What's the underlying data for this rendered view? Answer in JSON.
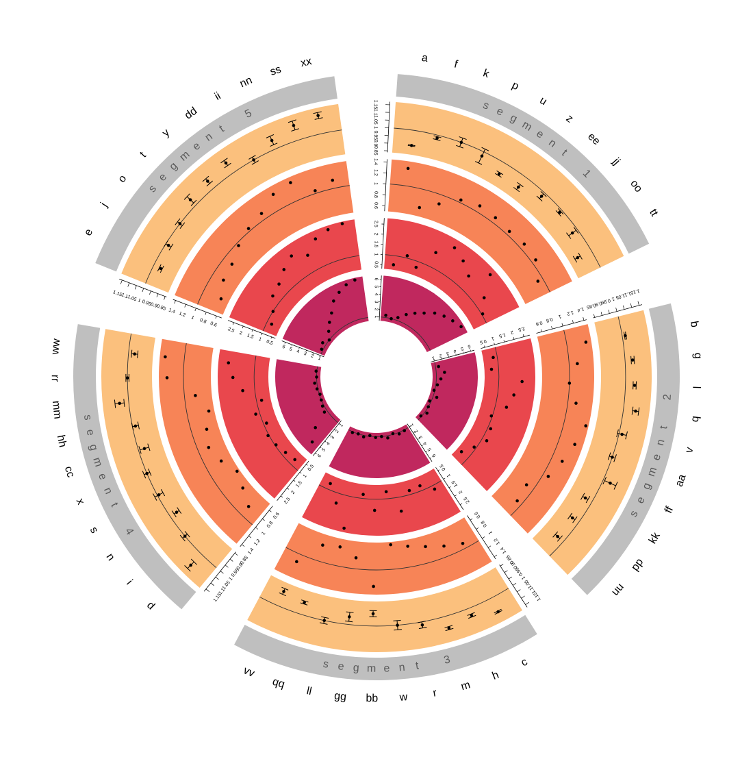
{
  "chart_data": {
    "type": "circos-scatter",
    "title": "",
    "colors": {
      "label_band": "#bfbfbf",
      "label_text": "#5a5a5a",
      "ring_inner": "#c0285e",
      "ring_2": "#e9474d",
      "ring_3": "#f78457",
      "ring_outer": "#fbc07d",
      "point": "#000000",
      "refline": "#333333"
    },
    "segments": [
      {
        "name": "segment 1",
        "labels": [
          "a",
          "f",
          "k",
          "p",
          "u",
          "z",
          "ee",
          "jj",
          "oo",
          "tt"
        ],
        "tracks": [
          {
            "ticks": [
              "1",
              "2",
              "3",
              "4",
              "5",
              "6"
            ],
            "ylim": [
              0.5,
              6.5
            ],
            "ref": 1,
            "errorbars": false,
            "values": [
              1.3,
              1.0,
              1.4,
              2.2,
              2.9,
              3.6,
              4.5,
              5.1,
              5.6,
              6.1
            ],
            "errors": []
          },
          {
            "ticks": [
              "0.5",
              "1",
              "1.5",
              "2",
              "2.5"
            ],
            "ylim": [
              0.3,
              2.8
            ],
            "ref": 1,
            "errorbars": false,
            "values": [
              0.55,
              1.12,
              0.7,
              1.75,
              2.4,
              2.1,
              1.7,
              2.5,
              1.55,
              1.05
            ],
            "errors": []
          },
          {
            "ticks": [
              "0.6",
              "0.8",
              "1",
              "1.2",
              "1.4"
            ],
            "ylim": [
              0.5,
              1.45
            ],
            "ref": 1,
            "errorbars": false,
            "values": [
              1.32,
              0.66,
              0.83,
              1.05,
              1.12,
              1.1,
              1.07,
              1.1,
              1.08,
              0.9
            ],
            "errors": []
          },
          {
            "ticks": [
              "0.85",
              "0.9",
              "0.95",
              "1",
              "1.05",
              "1.1",
              "1.15"
            ],
            "ylim": [
              0.84,
              1.17
            ],
            "ref": 1,
            "errorbars": true,
            "values": [
              0.9,
              0.98,
              1.0,
              0.97,
              0.92,
              0.92,
              0.97,
              0.98,
              0.96,
              0.9
            ],
            "errors": [
              0.003,
              0.01,
              0.03,
              0.05,
              0.01,
              0.02,
              0.02,
              0.01,
              0.03,
              0.02
            ]
          }
        ]
      },
      {
        "name": "segment 2",
        "labels": [
          "b",
          "g",
          "l",
          "q",
          "v",
          "aa",
          "ff",
          "kk",
          "pp",
          "uu"
        ],
        "tracks": [
          {
            "ticks": [
              "1",
              "2",
              "3",
              "4",
              "5",
              "6"
            ],
            "ylim": [
              0.5,
              6.5
            ],
            "ref": 1,
            "errorbars": false,
            "values": [
              1.4,
              2.1,
              1.6,
              1.2,
              0.9,
              1.5,
              0.8,
              1.0,
              1.3,
              0.9
            ],
            "errors": []
          },
          {
            "ticks": [
              "0.5",
              "1",
              "1.5",
              "2",
              "2.5"
            ],
            "ylim": [
              0.3,
              2.8
            ],
            "ref": 1,
            "errorbars": false,
            "values": [
              0.8,
              0.65,
              2.15,
              1.8,
              1.55,
              0.95,
              1.15,
              1.25,
              0.9,
              0.55
            ],
            "errors": []
          },
          {
            "ticks": [
              "0.6",
              "0.8",
              "1",
              "1.2",
              "1.4"
            ],
            "ylim": [
              0.5,
              1.45
            ],
            "ref": 1,
            "errorbars": false,
            "values": [
              1.35,
              1.15,
              1.0,
              1.15,
              1.4,
              1.3,
              1.2,
              1.1,
              0.85,
              0.9
            ],
            "errors": []
          },
          {
            "ticks": [
              "0.85",
              "0.9",
              "0.95",
              "1",
              "1.05",
              "1.1",
              "1.15"
            ],
            "ylim": [
              0.84,
              1.17
            ],
            "ref": 1,
            "errorbars": true,
            "values": [
              1.02,
              1.05,
              1.06,
              1.08,
              1.02,
              1.0,
              1.05,
              0.95,
              0.95,
              0.95
            ],
            "errors": [
              0.005,
              0.01,
              0.01,
              0.02,
              0.03,
              0.02,
              0.04,
              0.02,
              0.02,
              0.02
            ]
          }
        ]
      },
      {
        "name": "segment 3",
        "labels": [
          "c",
          "h",
          "m",
          "r",
          "w",
          "bb",
          "gg",
          "ll",
          "qq",
          "vv"
        ],
        "tracks": [
          {
            "ticks": [
              "1",
              "2",
              "3",
              "4",
              "5",
              "6"
            ],
            "ylim": [
              0.5,
              6.5
            ],
            "ref": 1,
            "errorbars": false,
            "values": [
              1.1,
              1.2,
              0.9,
              1.3,
              1.0,
              1.1,
              0.9,
              1.2,
              1.0,
              1.1
            ],
            "errors": []
          },
          {
            "ticks": [
              "0.5",
              "1",
              "1.5",
              "2",
              "2.5"
            ],
            "ylim": [
              0.3,
              2.8
            ],
            "ref": 1,
            "errorbars": false,
            "values": [
              1.2,
              0.75,
              0.8,
              1.7,
              0.65,
              1.55,
              0.8,
              2.6,
              1.5,
              0.7
            ],
            "errors": []
          },
          {
            "ticks": [
              "0.6",
              "0.8",
              "1",
              "1.2",
              "1.4"
            ],
            "ylim": [
              0.5,
              1.45
            ],
            "ref": 1,
            "errorbars": false,
            "values": [
              0.9,
              0.8,
              0.7,
              0.62,
              0.55,
              1.3,
              0.8,
              0.65,
              0.7,
              1.15
            ],
            "errors": []
          },
          {
            "ticks": [
              "0.85",
              "0.9",
              "0.95",
              "1",
              "1.05",
              "1.1",
              "1.15"
            ],
            "ylim": [
              0.84,
              1.17
            ],
            "ref": 1,
            "errorbars": true,
            "values": [
              1.1,
              1.05,
              1.08,
              1.02,
              1.0,
              0.92,
              0.95,
              1.0,
              0.92,
              0.9
            ],
            "errors": [
              0.005,
              0.01,
              0.01,
              0.02,
              0.03,
              0.02,
              0.03,
              0.02,
              0.01,
              0.02
            ]
          }
        ]
      },
      {
        "name": "segment 4",
        "labels": [
          "d",
          "i",
          "n",
          "s",
          "x",
          "cc",
          "hh",
          "mm",
          "rr",
          "ww"
        ],
        "tracks": [
          {
            "ticks": [
              "1",
              "2",
              "3",
              "4",
              "5",
              "6"
            ],
            "ylim": [
              0.5,
              6.5
            ],
            "ref": 1,
            "errorbars": false,
            "values": [
              5.2,
              3.6,
              1.4,
              1.2,
              1.0,
              0.9,
              1.1,
              1.3,
              1.0,
              1.1
            ],
            "errors": []
          },
          {
            "ticks": [
              "0.5",
              "1",
              "1.5",
              "2",
              "2.5"
            ],
            "ylim": [
              0.3,
              2.8
            ],
            "ref": 1,
            "errorbars": false,
            "values": [
              0.7,
              0.8,
              0.95,
              1.05,
              0.85,
              1.2,
              0.75,
              1.6,
              2.05,
              2.3
            ],
            "errors": []
          },
          {
            "ticks": [
              "0.6",
              "0.8",
              "1",
              "1.2",
              "1.4"
            ],
            "ylim": [
              0.5,
              1.45
            ],
            "ref": 1,
            "errorbars": false,
            "values": [
              0.8,
              0.65,
              0.55,
              0.7,
              0.8,
              0.72,
              0.6,
              0.8,
              1.3,
              1.35
            ],
            "errors": []
          },
          {
            "ticks": [
              "0.85",
              "0.9",
              "0.95",
              "1",
              "1.05",
              "1.1",
              "1.15"
            ],
            "ylim": [
              0.84,
              1.17
            ],
            "ref": 1,
            "errorbars": true,
            "values": [
              1.1,
              1.0,
              0.95,
              0.99,
              1.0,
              0.96,
              0.98,
              1.06,
              1.0,
              0.96
            ],
            "errors": [
              0.03,
              0.02,
              0.02,
              0.03,
              0.02,
              0.03,
              0.02,
              0.03,
              0.01,
              0.02
            ]
          }
        ]
      },
      {
        "name": "segment 5",
        "labels": [
          "e",
          "j",
          "o",
          "t",
          "y",
          "dd",
          "ii",
          "nn",
          "ss",
          "xx"
        ],
        "tracks": [
          {
            "ticks": [
              "1",
              "2",
              "3",
              "4",
              "5",
              "6"
            ],
            "ylim": [
              0.5,
              6.5
            ],
            "ref": 1,
            "errorbars": false,
            "values": [
              1.2,
              1.5,
              1.0,
              1.8,
              2.6,
              3.4,
              4.6,
              5.3,
              5.9,
              6.2
            ],
            "errors": []
          },
          {
            "ticks": [
              "0.5",
              "1",
              "1.5",
              "2",
              "2.5"
            ],
            "ylim": [
              0.3,
              2.8
            ],
            "ref": 1,
            "errorbars": false,
            "values": [
              0.75,
              1.0,
              1.45,
              1.6,
              1.95,
              2.25,
              1.85,
              2.4,
              2.6,
              2.7
            ],
            "errors": []
          },
          {
            "ticks": [
              "0.6",
              "0.8",
              "1",
              "1.2",
              "1.4"
            ],
            "ylim": [
              0.5,
              1.45
            ],
            "ref": 1,
            "errorbars": false,
            "values": [
              0.65,
              0.78,
              0.82,
              0.95,
              1.05,
              1.12,
              1.3,
              1.35,
              1.05,
              1.15
            ],
            "errors": []
          },
          {
            "ticks": [
              "0.85",
              "0.9",
              "0.95",
              "1",
              "1.05",
              "1.1",
              "1.15"
            ],
            "ylim": [
              0.84,
              1.17
            ],
            "ref": 1,
            "errorbars": true,
            "values": [
              0.95,
              0.98,
              1.0,
              1.05,
              1.06,
              1.08,
              1.0,
              1.06,
              1.1,
              1.12
            ],
            "errors": [
              0.01,
              0.02,
              0.02,
              0.03,
              0.02,
              0.02,
              0.02,
              0.03,
              0.03,
              0.02
            ]
          }
        ]
      }
    ]
  }
}
